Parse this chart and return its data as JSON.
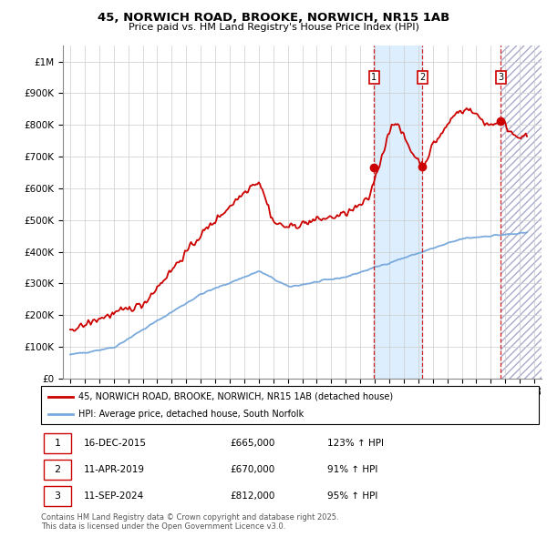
{
  "title_line1": "45, NORWICH ROAD, BROOKE, NORWICH, NR15 1AB",
  "title_line2": "Price paid vs. HM Land Registry's House Price Index (HPI)",
  "legend_line1": "45, NORWICH ROAD, BROOKE, NORWICH, NR15 1AB (detached house)",
  "legend_line2": "HPI: Average price, detached house, South Norfolk",
  "footnote": "Contains HM Land Registry data © Crown copyright and database right 2025.\nThis data is licensed under the Open Government Licence v3.0.",
  "sale_markers": [
    {
      "label": "1",
      "date_num": 2015.96,
      "price": 665000,
      "text": "16-DEC-2015",
      "amount": "£665,000",
      "hpi_pct": "123% ↑ HPI"
    },
    {
      "label": "2",
      "date_num": 2019.27,
      "price": 670000,
      "text": "11-APR-2019",
      "amount": "£670,000",
      "hpi_pct": "91% ↑ HPI"
    },
    {
      "label": "3",
      "date_num": 2024.69,
      "price": 812000,
      "text": "11-SEP-2024",
      "amount": "£812,000",
      "hpi_pct": "95% ↑ HPI"
    }
  ],
  "red_color": "#cc0000",
  "blue_color": "#7aaadd",
  "background_color": "#ffffff",
  "grid_color": "#cccccc",
  "shade_color": "#ddeeff",
  "ylim": [
    0,
    1050000
  ],
  "xlim_start": 1994.5,
  "xlim_end": 2027.5
}
